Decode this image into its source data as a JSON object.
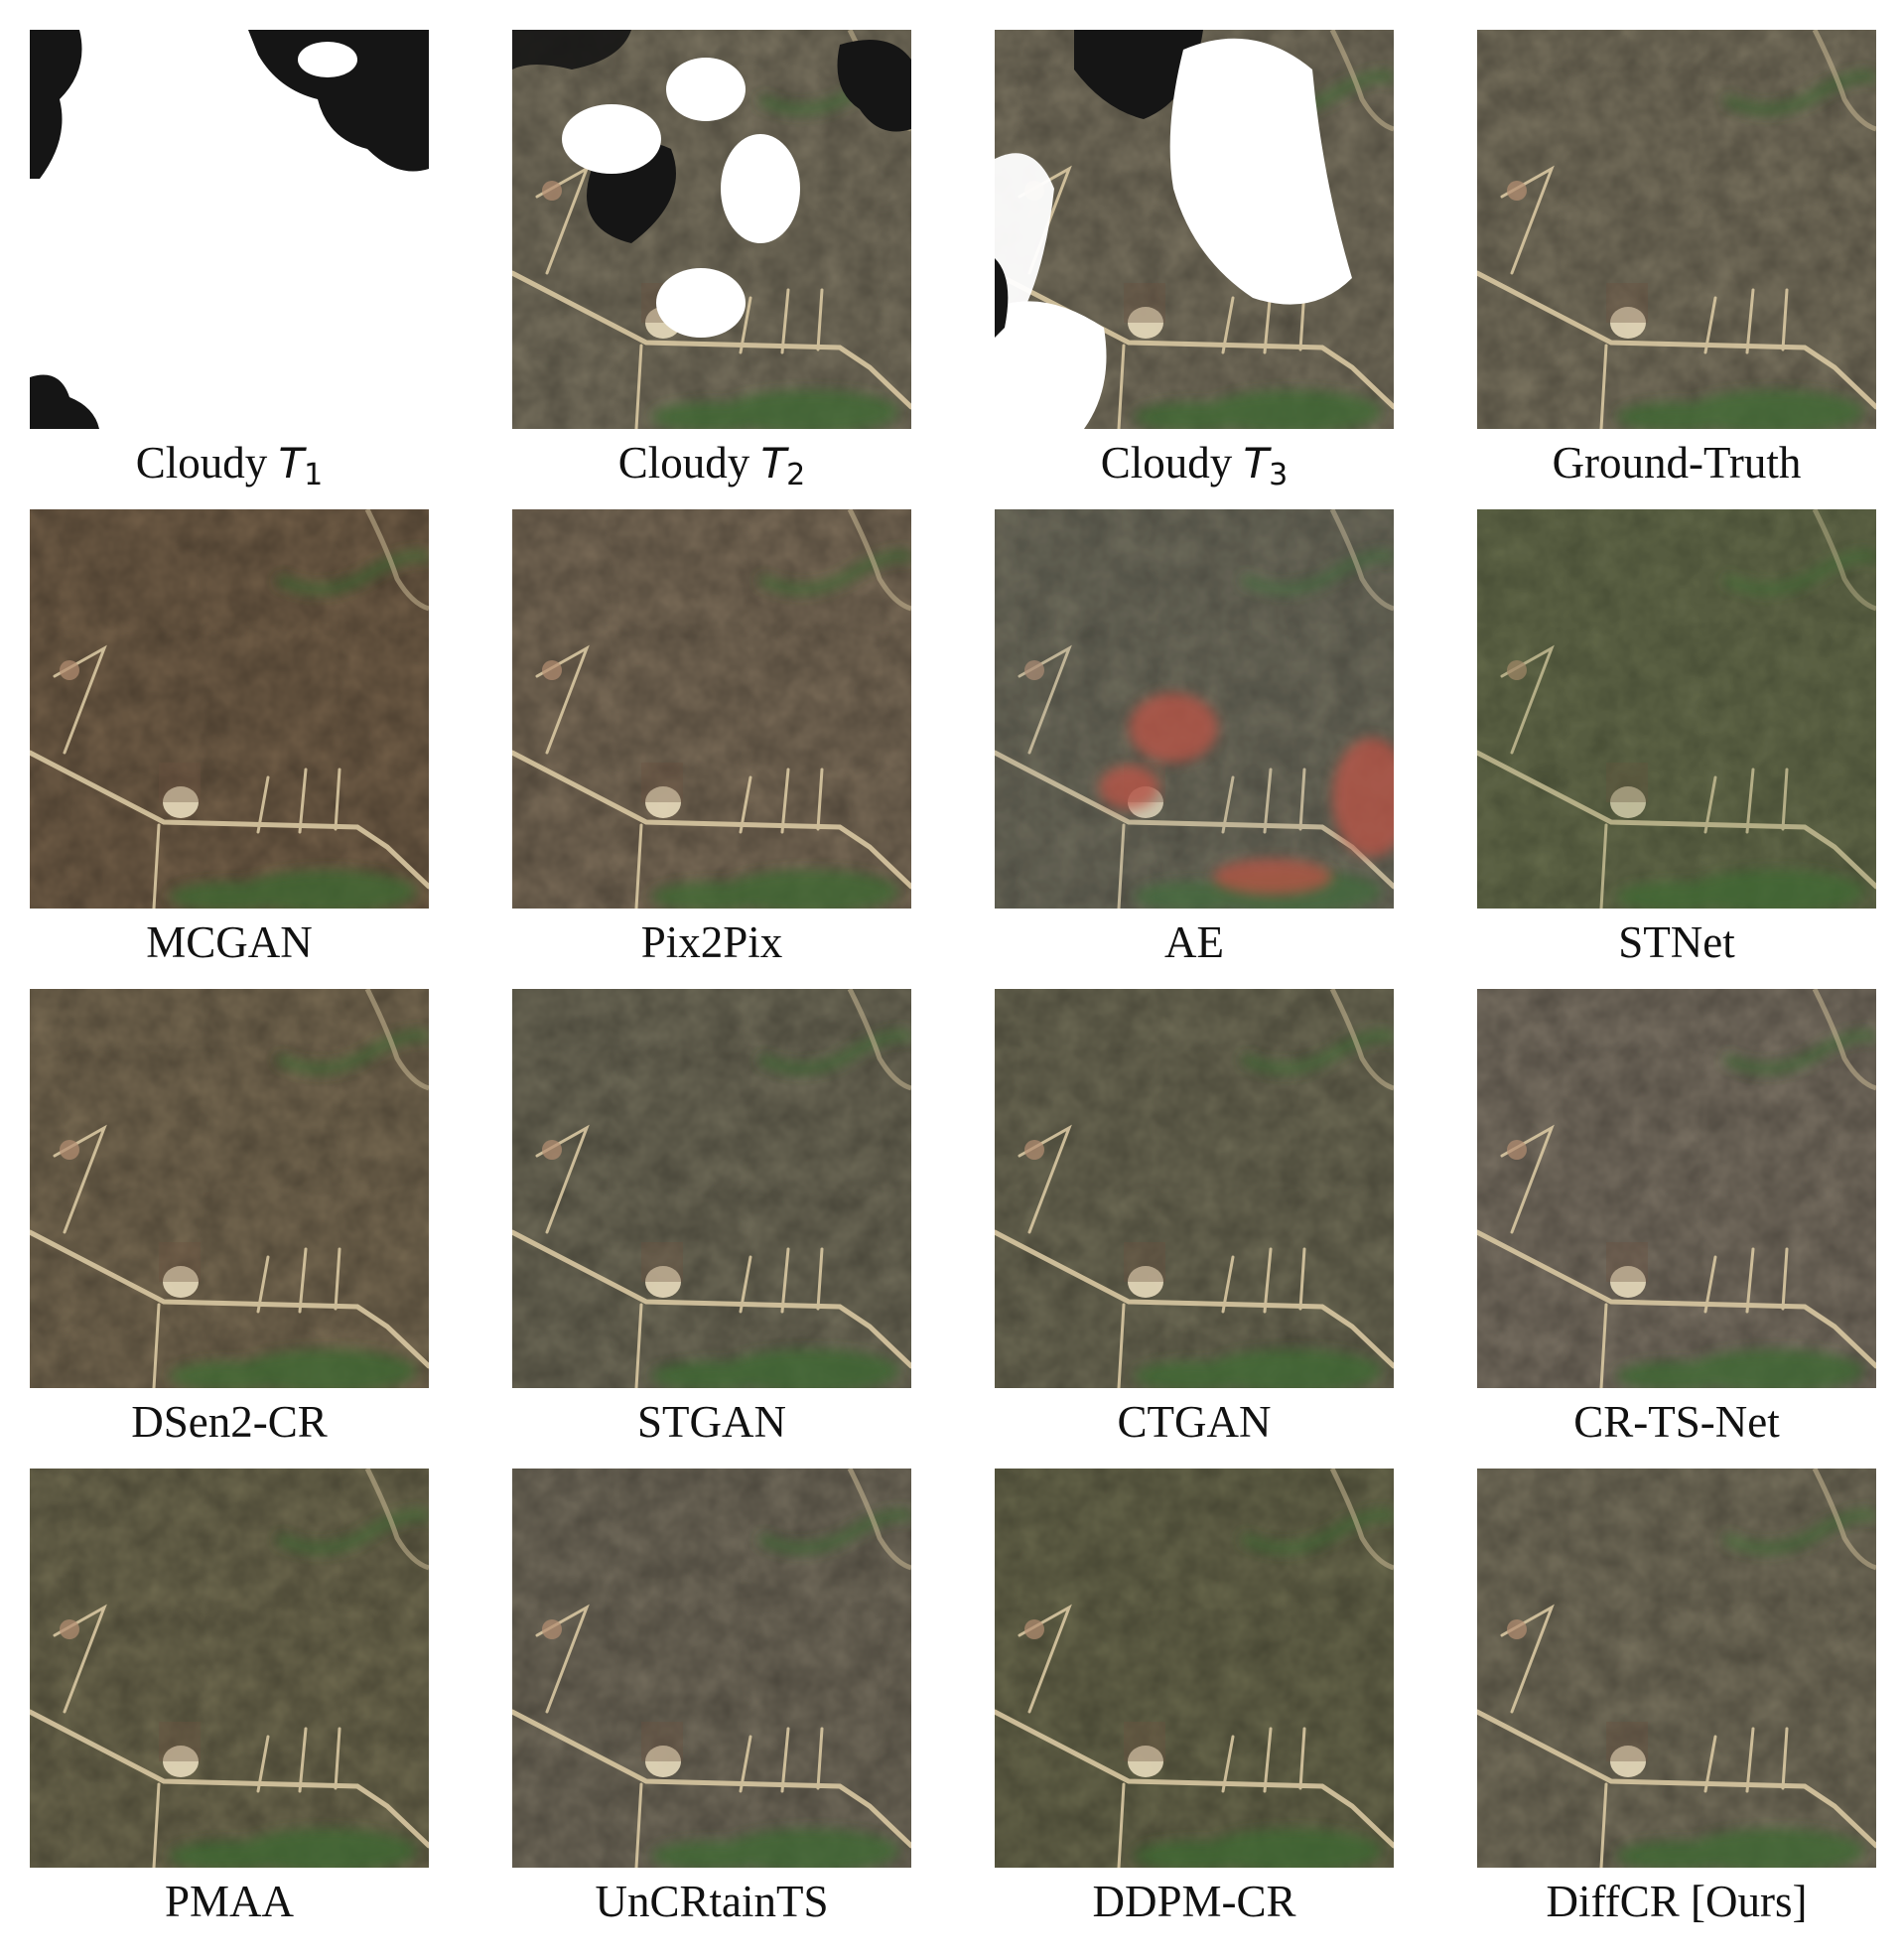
{
  "figure": {
    "panels": [
      {
        "key": "cloudy1",
        "caption": "Cloudy ",
        "var": "T",
        "sub": "1",
        "scene": "mostly-cloud"
      },
      {
        "key": "cloudy2",
        "caption": "Cloudy ",
        "var": "T",
        "sub": "2",
        "scene": "partly-cloudy"
      },
      {
        "key": "cloudy3",
        "caption": "Cloudy ",
        "var": "T",
        "sub": "3",
        "scene": "half-cloudy"
      },
      {
        "key": "gt",
        "caption": "Ground-Truth",
        "scene": "clear"
      },
      {
        "key": "mcgan",
        "caption": "MCGAN",
        "scene": "reconstruction"
      },
      {
        "key": "pix2pix",
        "caption": "Pix2Pix",
        "scene": "reconstruction"
      },
      {
        "key": "ae",
        "caption": "AE",
        "scene": "artifact-red"
      },
      {
        "key": "stnet",
        "caption": "STNet",
        "scene": "reconstruction-textured"
      },
      {
        "key": "dsen2cr",
        "caption": "DSen2-CR",
        "scene": "reconstruction"
      },
      {
        "key": "stgan",
        "caption": "STGAN",
        "scene": "reconstruction"
      },
      {
        "key": "ctgan",
        "caption": "CTGAN",
        "scene": "reconstruction"
      },
      {
        "key": "crtsnet",
        "caption": "CR-TS-Net",
        "scene": "reconstruction"
      },
      {
        "key": "pmaa",
        "caption": "PMAA",
        "scene": "reconstruction"
      },
      {
        "key": "uncrtaints",
        "caption": "UnCRtainTS",
        "scene": "reconstruction"
      },
      {
        "key": "ddpmcr",
        "caption": "DDPM-CR",
        "scene": "reconstruction"
      },
      {
        "key": "diffcr",
        "caption": "DiffCR [Ours]",
        "scene": "reconstruction"
      }
    ],
    "colors": {
      "terrain": "#7a7360",
      "road": "#d9c8a2",
      "vegetation": "#3e6a32",
      "cloud": "#ffffff",
      "shadow": "#151515",
      "artifact": "#c8503c"
    }
  }
}
